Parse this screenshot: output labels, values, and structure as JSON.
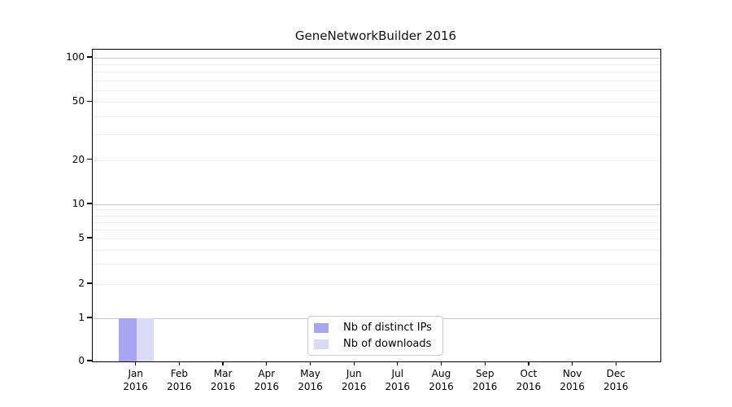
{
  "chart_data": {
    "type": "bar",
    "title": "GeneNetworkBuilder 2016",
    "xlabel": "",
    "ylabel": "",
    "months": [
      "Jan",
      "Feb",
      "Mar",
      "Apr",
      "May",
      "Jun",
      "Jul",
      "Aug",
      "Sep",
      "Oct",
      "Nov",
      "Dec"
    ],
    "year": "2016",
    "categories": [
      "Jan 2016",
      "Feb 2016",
      "Mar 2016",
      "Apr 2016",
      "May 2016",
      "Jun 2016",
      "Jul 2016",
      "Aug 2016",
      "Sep 2016",
      "Oct 2016",
      "Nov 2016",
      "Dec 2016"
    ],
    "series": [
      {
        "name": "Nb of distinct IPs",
        "color": "#a6a6f2",
        "values": [
          1,
          0,
          0,
          0,
          0,
          0,
          0,
          0,
          0,
          0,
          0,
          0
        ]
      },
      {
        "name": "Nb of downloads",
        "color": "#dbdbf8",
        "values": [
          1,
          0,
          0,
          0,
          0,
          0,
          0,
          0,
          0,
          0,
          0,
          0
        ]
      }
    ],
    "y_axis": {
      "scale": "symlog",
      "tick_values": [
        0,
        1,
        2,
        5,
        10,
        20,
        50,
        100
      ],
      "tick_labels": [
        "0",
        "1",
        "2",
        "5",
        "10",
        "20",
        "50",
        "100"
      ],
      "major_grid_values": [
        1,
        10,
        100
      ],
      "minor_grid_values": [
        2,
        3,
        4,
        5,
        6,
        7,
        8,
        9,
        20,
        30,
        40,
        50,
        60,
        70,
        80,
        90
      ],
      "range": [
        0,
        115
      ]
    },
    "legend": {
      "location": "lower center",
      "entries": [
        "Nb of distinct IPs",
        "Nb of downloads"
      ]
    },
    "grid": "on",
    "colors": {
      "major_gridline": "#c6c6c6",
      "minor_gridline": "#ededed",
      "spine": "#000000",
      "background": "#ffffff"
    }
  }
}
